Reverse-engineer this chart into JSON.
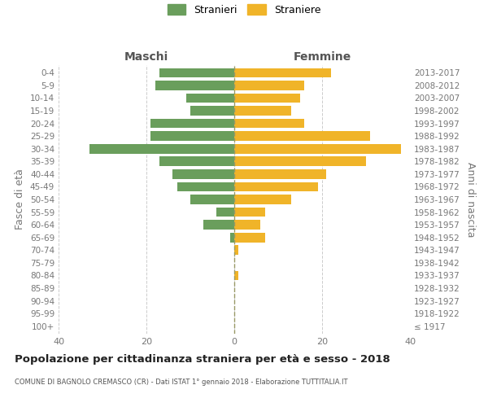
{
  "age_groups": [
    "100+",
    "95-99",
    "90-94",
    "85-89",
    "80-84",
    "75-79",
    "70-74",
    "65-69",
    "60-64",
    "55-59",
    "50-54",
    "45-49",
    "40-44",
    "35-39",
    "30-34",
    "25-29",
    "20-24",
    "15-19",
    "10-14",
    "5-9",
    "0-4"
  ],
  "birth_years": [
    "≤ 1917",
    "1918-1922",
    "1923-1927",
    "1928-1932",
    "1933-1937",
    "1938-1942",
    "1943-1947",
    "1948-1952",
    "1953-1957",
    "1958-1962",
    "1963-1967",
    "1968-1972",
    "1973-1977",
    "1978-1982",
    "1983-1987",
    "1988-1992",
    "1993-1997",
    "1998-2002",
    "2003-2007",
    "2008-2012",
    "2013-2017"
  ],
  "maschi": [
    0,
    0,
    0,
    0,
    0,
    0,
    0,
    1,
    7,
    4,
    10,
    13,
    14,
    17,
    33,
    19,
    19,
    10,
    11,
    18,
    17
  ],
  "femmine": [
    0,
    0,
    0,
    0,
    1,
    0,
    1,
    7,
    6,
    7,
    13,
    19,
    21,
    30,
    38,
    31,
    16,
    13,
    15,
    16,
    22
  ],
  "maschi_color": "#6a9e5c",
  "femmine_color": "#f0b429",
  "title": "Popolazione per cittadinanza straniera per età e sesso - 2018",
  "subtitle": "COMUNE DI BAGNOLO CREMASCO (CR) - Dati ISTAT 1° gennaio 2018 - Elaborazione TUTTITALIA.IT",
  "ylabel_left": "Fasce di età",
  "ylabel_right": "Anni di nascita",
  "xlabel_left": "Maschi",
  "xlabel_right": "Femmine",
  "legend_stranieri": "Stranieri",
  "legend_straniere": "Straniere",
  "xlim": 40,
  "background_color": "#ffffff",
  "grid_color": "#cccccc",
  "bar_height": 0.75
}
